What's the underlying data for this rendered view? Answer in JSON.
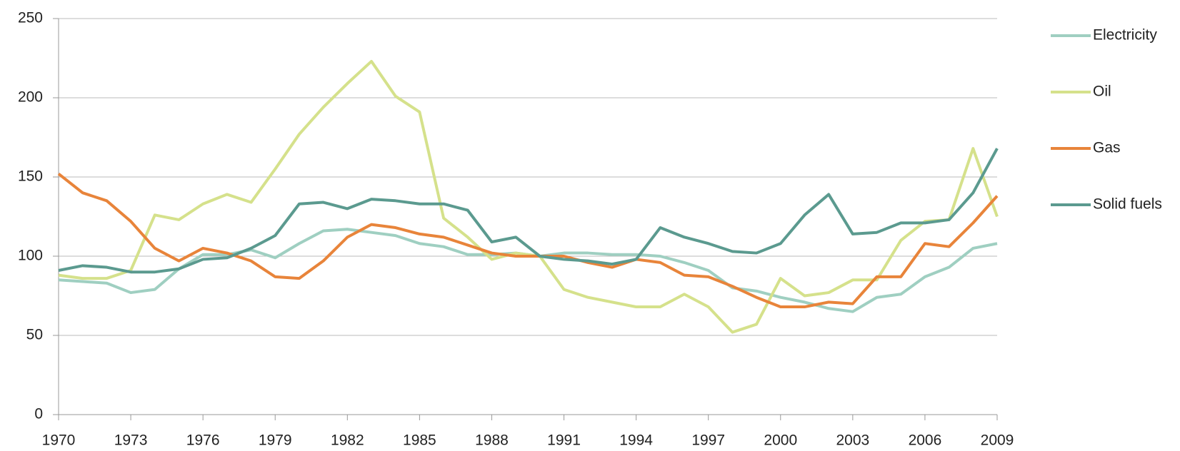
{
  "chart_data": {
    "type": "line",
    "x": [
      1970,
      1971,
      1972,
      1973,
      1974,
      1975,
      1976,
      1977,
      1978,
      1979,
      1980,
      1981,
      1982,
      1983,
      1984,
      1985,
      1986,
      1987,
      1988,
      1989,
      1990,
      1991,
      1992,
      1993,
      1994,
      1995,
      1996,
      1997,
      1998,
      1999,
      2000,
      2001,
      2002,
      2003,
      2004,
      2005,
      2006,
      2007,
      2008,
      2009
    ],
    "series": [
      {
        "name": "Electricity",
        "color": "#9fcfc1",
        "values": [
          85,
          84,
          83,
          77,
          79,
          92,
          101,
          101,
          104,
          99,
          108,
          116,
          117,
          115,
          113,
          108,
          106,
          101,
          101,
          102,
          100,
          102,
          102,
          101,
          101,
          100,
          96,
          91,
          80,
          78,
          74,
          71,
          67,
          65,
          74,
          76,
          87,
          93,
          105,
          108
        ]
      },
      {
        "name": "Oil",
        "color": "#d5e18b",
        "values": [
          88,
          86,
          86,
          91,
          126,
          123,
          133,
          139,
          134,
          155,
          177,
          194,
          209,
          223,
          201,
          191,
          124,
          112,
          98,
          102,
          100,
          79,
          74,
          71,
          68,
          68,
          76,
          68,
          52,
          57,
          86,
          75,
          77,
          85,
          85,
          110,
          122,
          123,
          168,
          125
        ]
      },
      {
        "name": "Gas",
        "color": "#e8843a",
        "values": [
          152,
          140,
          135,
          122,
          105,
          97,
          105,
          102,
          97,
          87,
          86,
          97,
          112,
          120,
          118,
          114,
          112,
          107,
          102,
          100,
          100,
          100,
          96,
          93,
          98,
          96,
          88,
          87,
          81,
          74,
          68,
          68,
          71,
          70,
          87,
          87,
          108,
          106,
          121,
          138
        ]
      },
      {
        "name": "Solid fuels",
        "color": "#5b9a8f",
        "values": [
          91,
          94,
          93,
          90,
          90,
          92,
          98,
          99,
          105,
          113,
          133,
          134,
          130,
          136,
          135,
          133,
          133,
          129,
          109,
          112,
          100,
          98,
          97,
          95,
          98,
          118,
          112,
          108,
          103,
          102,
          108,
          126,
          139,
          114,
          115,
          121,
          121,
          123,
          140,
          168
        ]
      }
    ],
    "xlim": [
      1970,
      2009
    ],
    "xticks": [
      1970,
      1973,
      1976,
      1979,
      1982,
      1985,
      1988,
      1991,
      1994,
      1997,
      2000,
      2003,
      2006,
      2009
    ],
    "ylim": [
      0,
      250
    ],
    "yticks": [
      0,
      50,
      100,
      150,
      200,
      250
    ],
    "grid": true,
    "legend": "right"
  }
}
